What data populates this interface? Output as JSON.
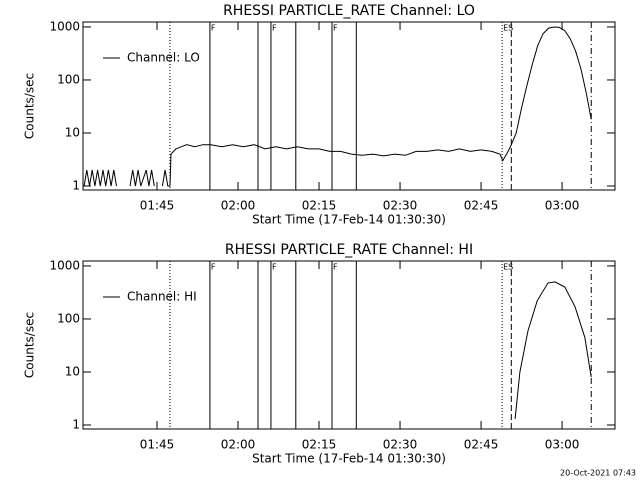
{
  "footer": "20-Oct-2021 07:43",
  "chart_data": [
    {
      "type": "line",
      "title": "RHESSI PARTICLE_RATE Channel: LO",
      "xlabel": "Start Time (17-Feb-14 01:30:30)",
      "ylabel": "Counts/sec",
      "log_y": true,
      "legend": "upper left",
      "xlim": [
        91.3,
        189.8
      ],
      "ylim": [
        0.84,
        1240
      ],
      "xticks": [
        {
          "value": 105,
          "label": "01:45"
        },
        {
          "value": 120,
          "label": "02:00"
        },
        {
          "value": 135,
          "label": "02:15"
        },
        {
          "value": 150,
          "label": "02:30"
        },
        {
          "value": 165,
          "label": "02:45"
        },
        {
          "value": 180,
          "label": "03:00"
        }
      ],
      "yticks": [
        1,
        10,
        100,
        1000
      ],
      "events": [
        {
          "x": 107.4,
          "style": "dotted"
        },
        {
          "x": 114.8,
          "style": "solid",
          "label": "F"
        },
        {
          "x": 123.7,
          "style": "solid"
        },
        {
          "x": 126.1,
          "style": "solid",
          "label": "F"
        },
        {
          "x": 130.7,
          "style": "solid"
        },
        {
          "x": 137.4,
          "style": "solid",
          "label": "F"
        },
        {
          "x": 141.9,
          "style": "solid"
        },
        {
          "x": 168.9,
          "style": "dotted",
          "label": "ES"
        },
        {
          "x": 170.6,
          "style": "dashed"
        },
        {
          "x": 185.4,
          "style": "dashdot"
        }
      ],
      "x": [
        91.5,
        92,
        92.5,
        93,
        93.5,
        94,
        94.5,
        95,
        95.5,
        96,
        96.5,
        97,
        97.5,
        98,
        99,
        100,
        100.5,
        101,
        101.5,
        102,
        103,
        103.5,
        104,
        104.5,
        105,
        106,
        106.5,
        107,
        107.4,
        107.6,
        108.5,
        109.5,
        110.5,
        112,
        113.5,
        115,
        117,
        119,
        121,
        123,
        125,
        127,
        129,
        131,
        133,
        135,
        137,
        139,
        141,
        143,
        145,
        147,
        149,
        151,
        153,
        155,
        157,
        159,
        161,
        163,
        165,
        167,
        168.5,
        169,
        170,
        170.6,
        171.5,
        172.5,
        173.5,
        174.5,
        175.5,
        176.5,
        177.5,
        178.5,
        179.5,
        180.5,
        181.5,
        182.5,
        183.5,
        184.5,
        185.4
      ],
      "series": [
        {
          "name": "Channel: LO",
          "color": "#000000",
          "values": [
            1,
            2,
            1,
            2,
            1,
            2,
            1,
            2,
            1,
            2,
            1,
            2,
            1,
            null,
            null,
            1,
            2,
            1,
            2,
            1,
            2,
            1,
            2,
            1,
            null,
            1,
            2,
            1,
            1,
            4,
            5,
            5.5,
            6,
            5.5,
            6,
            6,
            5.5,
            6,
            5.5,
            6,
            5,
            5.5,
            5,
            5.5,
            5,
            5,
            4.5,
            4.5,
            4,
            3.8,
            4,
            3.7,
            4,
            3.8,
            4.5,
            4.5,
            4.8,
            4.5,
            5,
            4.5,
            4.8,
            4.5,
            4,
            3,
            4.5,
            6,
            10,
            30,
            80,
            200,
            450,
            750,
            950,
            1000,
            980,
            850,
            600,
            350,
            160,
            55,
            18
          ]
        }
      ]
    },
    {
      "type": "line",
      "title": "RHESSI PARTICLE_RATE Channel: HI",
      "xlabel": "Start Time (17-Feb-14 01:30:30)",
      "ylabel": "Counts/sec",
      "log_y": true,
      "legend": "upper left",
      "xlim": [
        91.3,
        189.8
      ],
      "ylim": [
        0.84,
        1240
      ],
      "xticks": [
        {
          "value": 105,
          "label": "01:45"
        },
        {
          "value": 120,
          "label": "02:00"
        },
        {
          "value": 135,
          "label": "02:15"
        },
        {
          "value": 150,
          "label": "02:30"
        },
        {
          "value": 165,
          "label": "02:45"
        },
        {
          "value": 180,
          "label": "03:00"
        }
      ],
      "yticks": [
        1,
        10,
        100,
        1000
      ],
      "events": [
        {
          "x": 107.4,
          "style": "dotted"
        },
        {
          "x": 114.8,
          "style": "solid",
          "label": "F"
        },
        {
          "x": 123.7,
          "style": "solid"
        },
        {
          "x": 126.1,
          "style": "solid",
          "label": "F"
        },
        {
          "x": 130.7,
          "style": "solid"
        },
        {
          "x": 137.4,
          "style": "solid",
          "label": "F"
        },
        {
          "x": 141.9,
          "style": "solid"
        },
        {
          "x": 168.9,
          "style": "dotted",
          "label": "ES"
        },
        {
          "x": 170.6,
          "style": "dashed"
        },
        {
          "x": 185.4,
          "style": "dashdot"
        }
      ],
      "x": [
        171.3,
        172.2,
        173.7,
        175.4,
        177.4,
        178.7,
        180.5,
        182.4,
        184.2,
        185.4
      ],
      "series": [
        {
          "name": "Channel: HI",
          "color": "#000000",
          "values": [
            1.3,
            10,
            60,
            220,
            480,
            500,
            400,
            170,
            45,
            8
          ]
        }
      ]
    }
  ]
}
